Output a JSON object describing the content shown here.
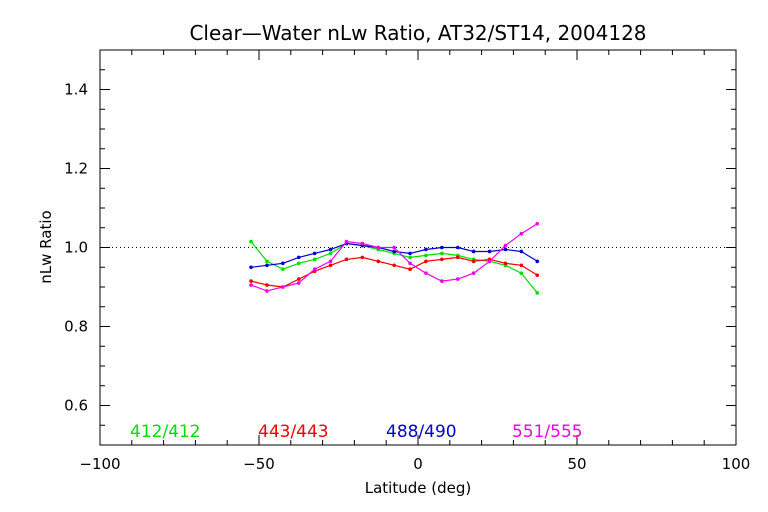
{
  "chart_data": {
    "type": "line",
    "title": "Clear—Water nLw Ratio, AT32/ST14, 2004128",
    "xlabel": "Latitude (deg)",
    "ylabel": "nLw Ratio",
    "xlim": [
      -100,
      100
    ],
    "ylim": [
      0.5,
      1.5
    ],
    "xticks": [
      -100,
      -50,
      0,
      50,
      100
    ],
    "xtick_labels": [
      "−100",
      "−50",
      "0",
      "50",
      "100"
    ],
    "yticks": [
      0.6,
      0.8,
      1.0,
      1.2,
      1.4
    ],
    "ytick_labels": [
      "0.6",
      "0.8",
      "1.0",
      "1.2",
      "1.4"
    ],
    "reference_line": 1.0,
    "grid": false,
    "legend_position": "bottom",
    "series": [
      {
        "name": "412/412",
        "color": "#00dd00",
        "x": [
          -52.5,
          -47.5,
          -42.5,
          -37.5,
          -32.5,
          -27.5,
          -22.5,
          -17.5,
          -12.5,
          -7.5,
          -2.5,
          2.5,
          7.5,
          12.5,
          17.5,
          22.5,
          27.5,
          32.5,
          37.5
        ],
        "y": [
          1.015,
          0.965,
          0.945,
          0.96,
          0.97,
          0.985,
          1.01,
          1.005,
          0.995,
          0.985,
          0.975,
          0.98,
          0.985,
          0.98,
          0.97,
          0.965,
          0.955,
          0.935,
          0.885
        ]
      },
      {
        "name": "443/443",
        "color": "#ee0000",
        "x": [
          -52.5,
          -47.5,
          -42.5,
          -37.5,
          -32.5,
          -27.5,
          -22.5,
          -17.5,
          -12.5,
          -7.5,
          -2.5,
          2.5,
          7.5,
          12.5,
          17.5,
          22.5,
          27.5,
          32.5,
          37.5
        ],
        "y": [
          0.915,
          0.905,
          0.9,
          0.92,
          0.94,
          0.955,
          0.97,
          0.975,
          0.965,
          0.955,
          0.945,
          0.965,
          0.97,
          0.975,
          0.965,
          0.97,
          0.96,
          0.955,
          0.93
        ]
      },
      {
        "name": "488/490",
        "color": "#0000cc",
        "x": [
          -52.5,
          -47.5,
          -42.5,
          -37.5,
          -32.5,
          -27.5,
          -22.5,
          -17.5,
          -12.5,
          -7.5,
          -2.5,
          2.5,
          7.5,
          12.5,
          17.5,
          22.5,
          27.5,
          32.5,
          37.5
        ],
        "y": [
          0.95,
          0.955,
          0.96,
          0.975,
          0.985,
          0.995,
          1.01,
          1.005,
          1.0,
          0.99,
          0.985,
          0.995,
          1.0,
          1.0,
          0.99,
          0.99,
          0.995,
          0.99,
          0.965
        ]
      },
      {
        "name": "551/555",
        "color": "#ee00ee",
        "x": [
          -52.5,
          -47.5,
          -42.5,
          -37.5,
          -32.5,
          -27.5,
          -22.5,
          -17.5,
          -12.5,
          -7.5,
          -2.5,
          2.5,
          7.5,
          12.5,
          17.5,
          22.5,
          27.5,
          32.5,
          37.5
        ],
        "y": [
          0.905,
          0.89,
          0.9,
          0.91,
          0.945,
          0.965,
          1.015,
          1.01,
          1.0,
          1.0,
          0.96,
          0.935,
          0.915,
          0.92,
          0.935,
          0.965,
          1.005,
          1.035,
          1.06
        ]
      }
    ]
  }
}
